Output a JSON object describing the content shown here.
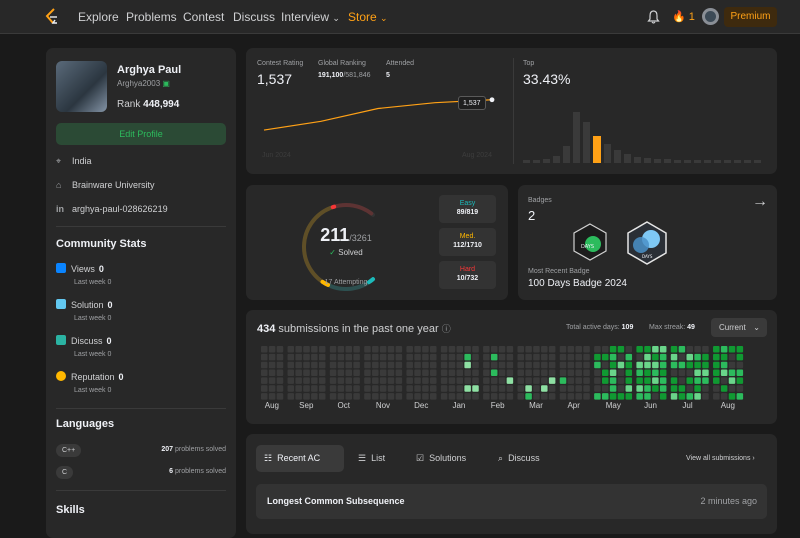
{
  "nav": {
    "links": [
      "Explore",
      "Problems",
      "Contest",
      "Discuss",
      "Interview",
      "Store"
    ],
    "streak": "1",
    "premium": "Premium"
  },
  "profile": {
    "name": "Arghya Paul",
    "handle": "Arghya2003",
    "rank_label": "Rank",
    "rank": "448,994",
    "edit": "Edit Profile",
    "location": "India",
    "school": "Brainware University",
    "linkedin": "arghya-paul-028626219"
  },
  "community": {
    "title": "Community Stats",
    "items": [
      {
        "label": "Views",
        "value": "0",
        "sub": "Last week",
        "subv": "0",
        "color": "#0a84ff"
      },
      {
        "label": "Solution",
        "value": "0",
        "sub": "Last week",
        "subv": "0",
        "color": "#62c8f0"
      },
      {
        "label": "Discuss",
        "value": "0",
        "sub": "Last week",
        "subv": "0",
        "color": "#2bb3a3"
      },
      {
        "label": "Reputation",
        "value": "0",
        "sub": "Last week",
        "subv": "0",
        "color": "#ffb800"
      }
    ]
  },
  "languages": {
    "title": "Languages",
    "items": [
      {
        "name": "C++",
        "count": "207",
        "suffix": "problems solved"
      },
      {
        "name": "C",
        "count": "6",
        "suffix": "problems solved"
      }
    ]
  },
  "skills": {
    "title": "Skills"
  },
  "rating": {
    "contest_label": "Contest Rating",
    "contest_value": "1,537",
    "global_label": "Global Ranking",
    "global_value": "191,100",
    "global_total": "/581,846",
    "attended_label": "Attended",
    "attended_value": "5",
    "tooltip": "1,537",
    "start_label": "Jun 2024",
    "end_label": "Aug 2024",
    "top_label": "Top",
    "top_value": "33.43%"
  },
  "chart_data": {
    "type": "line",
    "x": [
      1,
      2,
      3,
      4,
      5
    ],
    "y": [
      1485,
      1500,
      1522,
      1532,
      1537
    ],
    "xlabel": "",
    "ylabel": ""
  },
  "solved": {
    "count": "211",
    "total": "/3261",
    "label": "Solved",
    "attempting": "17 Attempting",
    "easy": {
      "label": "Easy",
      "value": "89/819",
      "solved": 89,
      "total": 819,
      "color": "#1cbaba"
    },
    "medium": {
      "label": "Med.",
      "value": "112/1710",
      "solved": 112,
      "total": 1710,
      "color": "#ffb700"
    },
    "hard": {
      "label": "Hard",
      "value": "10/732",
      "solved": 10,
      "total": 732,
      "color": "#f63737"
    }
  },
  "badges": {
    "title": "Badges",
    "count": "2",
    "recent_label": "Most Recent Badge",
    "recent_name": "100 Days Badge 2024",
    "badge1_text": "DAYS",
    "badge2_text": "DAYS"
  },
  "submissions": {
    "count": "434",
    "label": "submissions in the past one year",
    "active_label": "Total active days:",
    "active_value": "109",
    "streak_label": "Max streak:",
    "streak_value": "49",
    "current": "Current",
    "months": [
      "Aug",
      "Sep",
      "Oct",
      "Nov",
      "Dec",
      "Jan",
      "Feb",
      "Mar",
      "Apr",
      "May",
      "Jun",
      "Jul",
      "Aug"
    ]
  },
  "recent": {
    "tabs": [
      "Recent AC",
      "List",
      "Solutions",
      "Discuss"
    ],
    "view_all": "View all submissions",
    "items": [
      {
        "title": "Longest Common Subsequence",
        "time": "2 minutes ago"
      }
    ]
  }
}
